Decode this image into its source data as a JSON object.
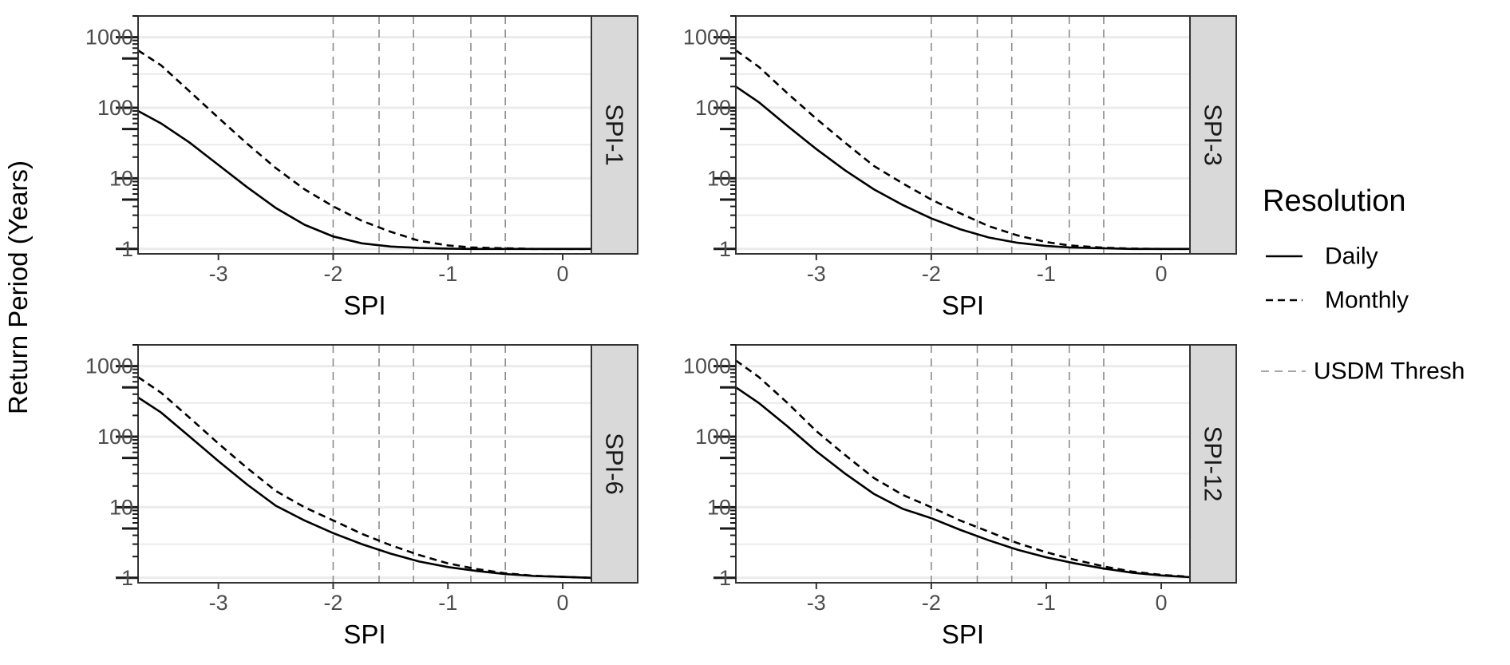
{
  "chart_data": {
    "type": "line",
    "ylabel": "Return Period (Years)",
    "xlabel": "SPI",
    "y_scale": "log10",
    "ylim": [
      0.85,
      2000
    ],
    "xlim": [
      -3.7,
      0.25
    ],
    "x_ticks": [
      -3,
      -2,
      -1,
      0
    ],
    "y_ticks": [
      1,
      10,
      100,
      1000
    ],
    "usdm_thresholds": [
      -2.0,
      -1.6,
      -1.3,
      -0.8,
      -0.5
    ],
    "grid": "horizontal major and minor",
    "legend": {
      "title": "Resolution",
      "placement": "right",
      "entries": [
        {
          "label": "Daily",
          "style": "solid"
        },
        {
          "label": "Monthly",
          "style": "dashed"
        },
        {
          "label": "USDM Thresh",
          "style": "dashed-grey"
        }
      ]
    },
    "panels": [
      {
        "strip": "SPI-1",
        "series": [
          {
            "name": "Daily",
            "x": [
              -3.7,
              -3.5,
              -3.25,
              -3.0,
              -2.75,
              -2.5,
              -2.25,
              -2.0,
              -1.75,
              -1.5,
              -1.25,
              -1.0,
              -0.8,
              -0.5,
              -0.25,
              0.0,
              0.25
            ],
            "y": [
              90,
              60,
              32,
              15.5,
              7.5,
              3.8,
              2.2,
              1.5,
              1.2,
              1.08,
              1.03,
              1.01,
              1.0,
              1.0,
              1.0,
              1.0,
              1.0
            ]
          },
          {
            "name": "Monthly",
            "x": [
              -3.7,
              -3.5,
              -3.25,
              -3.0,
              -2.75,
              -2.5,
              -2.25,
              -2.0,
              -1.75,
              -1.5,
              -1.25,
              -1.0,
              -0.8,
              -0.5,
              -0.25,
              0.0,
              0.25
            ],
            "y": [
              650,
              400,
              170,
              72,
              31,
              14,
              7,
              4.0,
              2.5,
              1.75,
              1.3,
              1.12,
              1.05,
              1.02,
              1.0,
              1.0,
              1.0
            ]
          }
        ]
      },
      {
        "strip": "SPI-3",
        "series": [
          {
            "name": "Daily",
            "x": [
              -3.7,
              -3.5,
              -3.25,
              -3.0,
              -2.75,
              -2.5,
              -2.25,
              -2.0,
              -1.75,
              -1.5,
              -1.25,
              -1.0,
              -0.8,
              -0.5,
              -0.25,
              0.0,
              0.25
            ],
            "y": [
              200,
              120,
              55,
              26,
              13,
              7,
              4.2,
              2.7,
              1.9,
              1.45,
              1.22,
              1.1,
              1.05,
              1.02,
              1.0,
              1.0,
              1.0
            ]
          },
          {
            "name": "Monthly",
            "x": [
              -3.7,
              -3.5,
              -3.25,
              -3.0,
              -2.75,
              -2.5,
              -2.25,
              -2.0,
              -1.75,
              -1.5,
              -1.25,
              -1.0,
              -0.8,
              -0.5,
              -0.25,
              0.0,
              0.25
            ],
            "y": [
              650,
              380,
              160,
              70,
              32,
              15,
              8.5,
              5.0,
              3.2,
              2.1,
              1.55,
              1.25,
              1.12,
              1.04,
              1.01,
              1.0,
              1.0
            ]
          }
        ]
      },
      {
        "strip": "SPI-6",
        "series": [
          {
            "name": "Daily",
            "x": [
              -3.7,
              -3.5,
              -3.25,
              -3.0,
              -2.75,
              -2.5,
              -2.25,
              -2.0,
              -1.75,
              -1.5,
              -1.25,
              -1.0,
              -0.75,
              -0.5,
              -0.25,
              0.0,
              0.25
            ],
            "y": [
              360,
              220,
              100,
              45,
              21,
              10.5,
              6.5,
              4.3,
              3.0,
              2.2,
              1.7,
              1.42,
              1.25,
              1.13,
              1.06,
              1.03,
              1.0
            ]
          },
          {
            "name": "Monthly",
            "x": [
              -3.7,
              -3.5,
              -3.25,
              -3.0,
              -2.75,
              -2.5,
              -2.25,
              -2.0,
              -1.75,
              -1.5,
              -1.25,
              -1.0,
              -0.75,
              -0.5,
              -0.25,
              0.0,
              0.25
            ],
            "y": [
              700,
              420,
              185,
              80,
              36,
              17,
              10,
              6.5,
              4.2,
              2.9,
              2.1,
              1.6,
              1.33,
              1.16,
              1.07,
              1.03,
              1.0
            ]
          }
        ]
      },
      {
        "strip": "SPI-12",
        "series": [
          {
            "name": "Daily",
            "x": [
              -3.7,
              -3.5,
              -3.25,
              -3.0,
              -2.75,
              -2.5,
              -2.25,
              -2.0,
              -1.75,
              -1.5,
              -1.25,
              -1.0,
              -0.75,
              -0.5,
              -0.25,
              0.0,
              0.25
            ],
            "y": [
              500,
              300,
              140,
              62,
              30,
              15.5,
              9.5,
              7.0,
              4.8,
              3.4,
              2.5,
              1.95,
              1.6,
              1.35,
              1.18,
              1.08,
              1.02
            ]
          },
          {
            "name": "Monthly",
            "x": [
              -3.7,
              -3.5,
              -3.25,
              -3.0,
              -2.75,
              -2.5,
              -2.25,
              -2.0,
              -1.75,
              -1.5,
              -1.25,
              -1.0,
              -0.75,
              -0.5,
              -0.25,
              0.0,
              0.25
            ],
            "y": [
              1200,
              700,
              300,
              120,
              55,
              26,
              15,
              10,
              6.5,
              4.5,
              3.1,
              2.3,
              1.8,
              1.45,
              1.22,
              1.1,
              1.03
            ]
          }
        ]
      }
    ]
  }
}
